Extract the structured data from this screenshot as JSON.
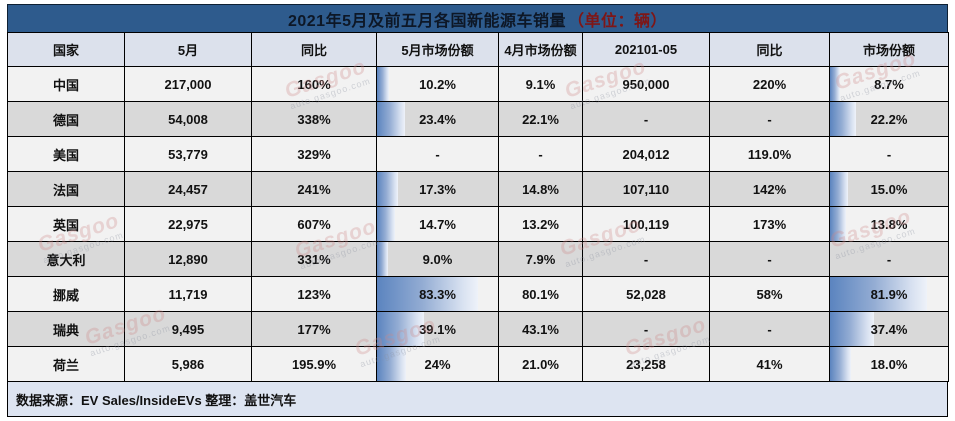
{
  "title": {
    "main": "2021年5月及前五月各国新能源车销量",
    "unit": "（单位：辆）"
  },
  "chart_data": {
    "type": "table",
    "title": "2021年5月及前五月各国新能源车销量（单位：辆）",
    "columns": [
      "国家",
      "5月",
      "同比",
      "5月市场份额",
      "4月市场份额",
      "202101-05",
      "同比",
      "市场份额"
    ],
    "muted_column_index": 4,
    "red_column_indexes": [
      2,
      6
    ],
    "bar_column_indexes": [
      3,
      7
    ],
    "rows": [
      [
        "中国",
        "217,000",
        "160%",
        "10.2%",
        "9.1%",
        "950,000",
        "220%",
        "8.7%"
      ],
      [
        "德国",
        "54,008",
        "338%",
        "23.4%",
        "22.1%",
        "-",
        "-",
        "22.2%"
      ],
      [
        "美国",
        "53,779",
        "329%",
        "-",
        "-",
        "204,012",
        "119.0%",
        "-"
      ],
      [
        "法国",
        "24,457",
        "241%",
        "17.3%",
        "14.8%",
        "107,110",
        "142%",
        "15.0%"
      ],
      [
        "英国",
        "22,975",
        "607%",
        "14.7%",
        "13.2%",
        "100,119",
        "173%",
        "13.8%"
      ],
      [
        "意大利",
        "12,890",
        "331%",
        "9.0%",
        "7.9%",
        "-",
        "-",
        "-"
      ],
      [
        "挪威",
        "11,719",
        "123%",
        "83.3%",
        "80.1%",
        "52,028",
        "58%",
        "81.9%"
      ],
      [
        "瑞典",
        "9,495",
        "177%",
        "39.1%",
        "43.1%",
        "-",
        "-",
        "37.4%"
      ],
      [
        "荷兰",
        "5,986",
        "195.9%",
        "24%",
        "21.0%",
        "23,258",
        "41%",
        "18.0%"
      ]
    ],
    "source_note": "数据来源：EV Sales/InsideEVs 整理：盖世汽车"
  },
  "footer": {
    "text": "数据来源：EV Sales/InsideEVs 整理：盖世汽车"
  },
  "watermark": {
    "brand": "Gasgoo",
    "url": "auto.gasgoo.com"
  },
  "colors": {
    "title_bg": "#2E5B8D",
    "accent_red": "#C00000",
    "muted_gray": "#8A8A8A",
    "bar_blue": "#5B84BF",
    "header_bg": "#DCE1EC",
    "row_light": "#F2F2F2",
    "row_dark": "#D9D9D9",
    "footer_bg": "#DDE4F1"
  }
}
